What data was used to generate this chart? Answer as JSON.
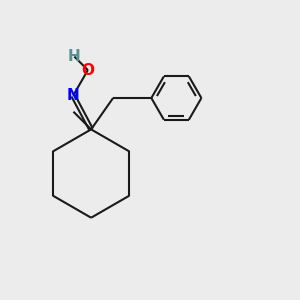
{
  "bg_color": "#ececec",
  "bond_color": "#1a1a1a",
  "N_color": "#0000ff",
  "O_color": "#ff0000",
  "H_color": "#5a9090",
  "line_width": 1.5,
  "font_size_atom": 11,
  "xlim": [
    0,
    10
  ],
  "ylim": [
    0,
    10
  ]
}
